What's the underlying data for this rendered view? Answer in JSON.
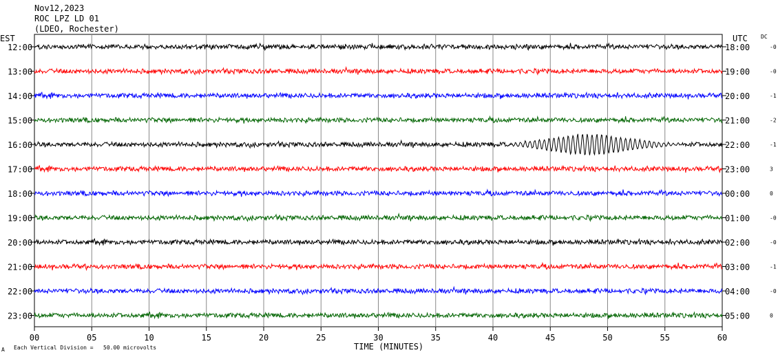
{
  "header": {
    "date": "Nov12,2023",
    "station": "ROC LPZ LD 01",
    "network": "(LDEO, Rochester)"
  },
  "left_zone_label": "EST",
  "right_zone_label": "UTC",
  "dc_label": "DC",
  "footer_note": "Each Vertical Division =   50.00 microvolts",
  "footer_mark": "A",
  "chart_data": {
    "type": "line",
    "xlabel": "TIME (MINUTES)",
    "xlim": [
      0,
      60
    ],
    "x_ticks": [
      "00",
      "05",
      "10",
      "15",
      "20",
      "25",
      "30",
      "35",
      "40",
      "45",
      "50",
      "55",
      "60"
    ],
    "trace_colors": [
      "#000000",
      "#ff0000",
      "#0000ff",
      "#006400"
    ],
    "rows": [
      {
        "est": "12:00",
        "utc": "18:00",
        "dc": "-0",
        "color": "#000000"
      },
      {
        "est": "13:00",
        "utc": "19:00",
        "dc": "-0",
        "color": "#ff0000"
      },
      {
        "est": "14:00",
        "utc": "20:00",
        "dc": "-1",
        "color": "#0000ff"
      },
      {
        "est": "15:00",
        "utc": "21:00",
        "dc": "-2",
        "color": "#006400"
      },
      {
        "est": "16:00",
        "utc": "22:00",
        "dc": "-1",
        "color": "#000000"
      },
      {
        "est": "17:00",
        "utc": "23:00",
        "dc": "3",
        "color": "#ff0000"
      },
      {
        "est": "18:00",
        "utc": "00:00",
        "dc": "0",
        "color": "#0000ff"
      },
      {
        "est": "19:00",
        "utc": "01:00",
        "dc": "-0",
        "color": "#006400"
      },
      {
        "est": "20:00",
        "utc": "02:00",
        "dc": "-0",
        "color": "#000000"
      },
      {
        "est": "21:00",
        "utc": "03:00",
        "dc": "-1",
        "color": "#ff0000"
      },
      {
        "est": "22:00",
        "utc": "04:00",
        "dc": "-0",
        "color": "#0000ff"
      },
      {
        "est": "23:00",
        "utc": "05:00",
        "dc": "0",
        "color": "#006400"
      }
    ],
    "events": [
      {
        "row": 4,
        "start_min": 41.5,
        "end_min": 56.5,
        "peak_min": 48.5,
        "relative_amplitude": 4
      }
    ]
  }
}
